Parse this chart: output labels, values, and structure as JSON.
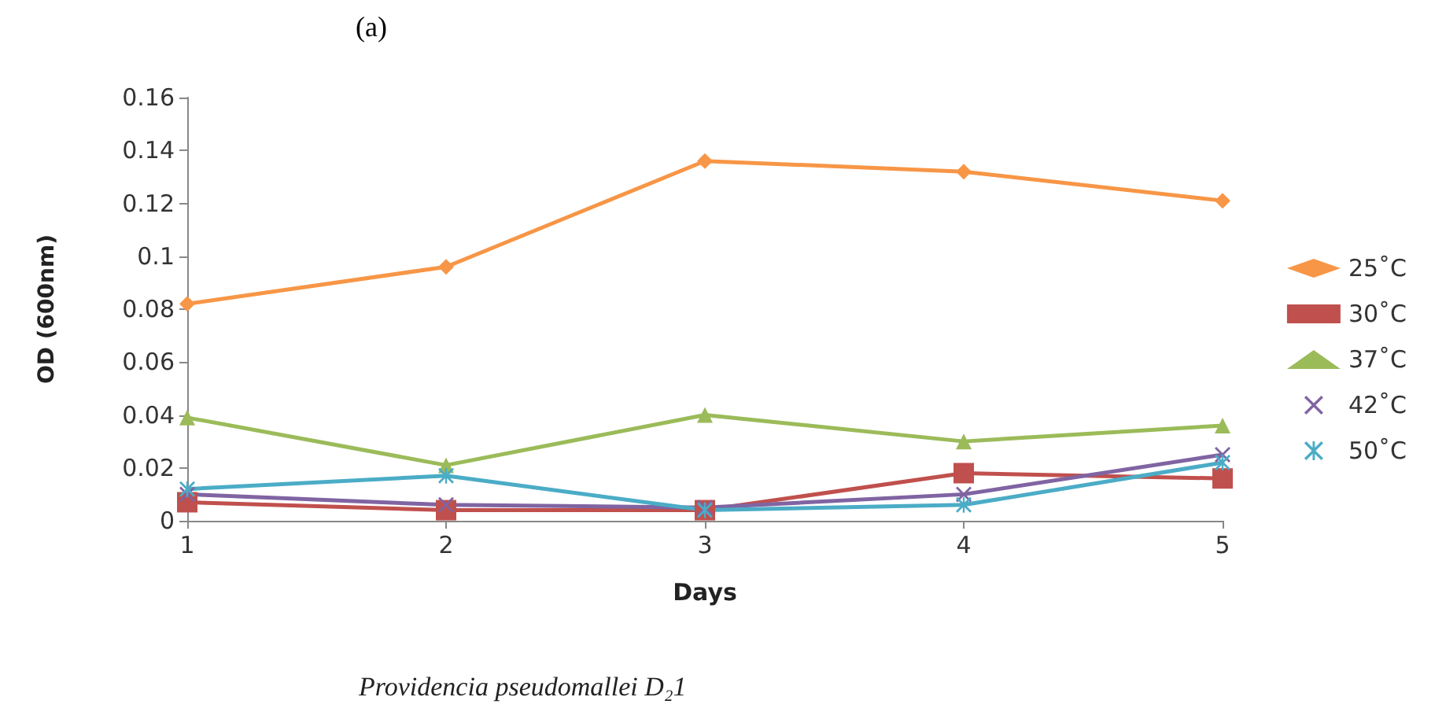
{
  "chart_data": {
    "type": "line",
    "title": "(a)",
    "xlabel": "Days",
    "ylabel": "OD (600nm)",
    "categories": [
      "1",
      "2",
      "3",
      "4",
      "5"
    ],
    "ylim": [
      0,
      0.16
    ],
    "yticks": [
      0,
      0.02,
      0.04,
      0.06,
      0.08,
      0.1,
      0.12,
      0.14,
      0.16
    ],
    "grid": false,
    "legend": "right",
    "line_style": "solid",
    "series": [
      {
        "name": "25˚C",
        "color": "#f79646",
        "marker": "diamond",
        "values": [
          0.082,
          0.096,
          0.136,
          0.132,
          0.121
        ]
      },
      {
        "name": "30˚C",
        "color": "#c0504d",
        "marker": "square",
        "values": [
          0.007,
          0.004,
          0.004,
          0.018,
          0.016
        ]
      },
      {
        "name": "37˚C",
        "color": "#9bbb59",
        "marker": "triangle",
        "values": [
          0.039,
          0.021,
          0.04,
          0.03,
          0.036
        ]
      },
      {
        "name": "42˚C",
        "color": "#8064a2",
        "marker": "cross",
        "values": [
          0.01,
          0.006,
          0.005,
          0.01,
          0.025
        ]
      },
      {
        "name": "50˚C",
        "color": "#4bacc6",
        "marker": "star",
        "values": [
          0.012,
          0.017,
          0.004,
          0.006,
          0.022
        ]
      }
    ],
    "annotations": [
      "Providencia pseudomallei D₂1"
    ]
  }
}
